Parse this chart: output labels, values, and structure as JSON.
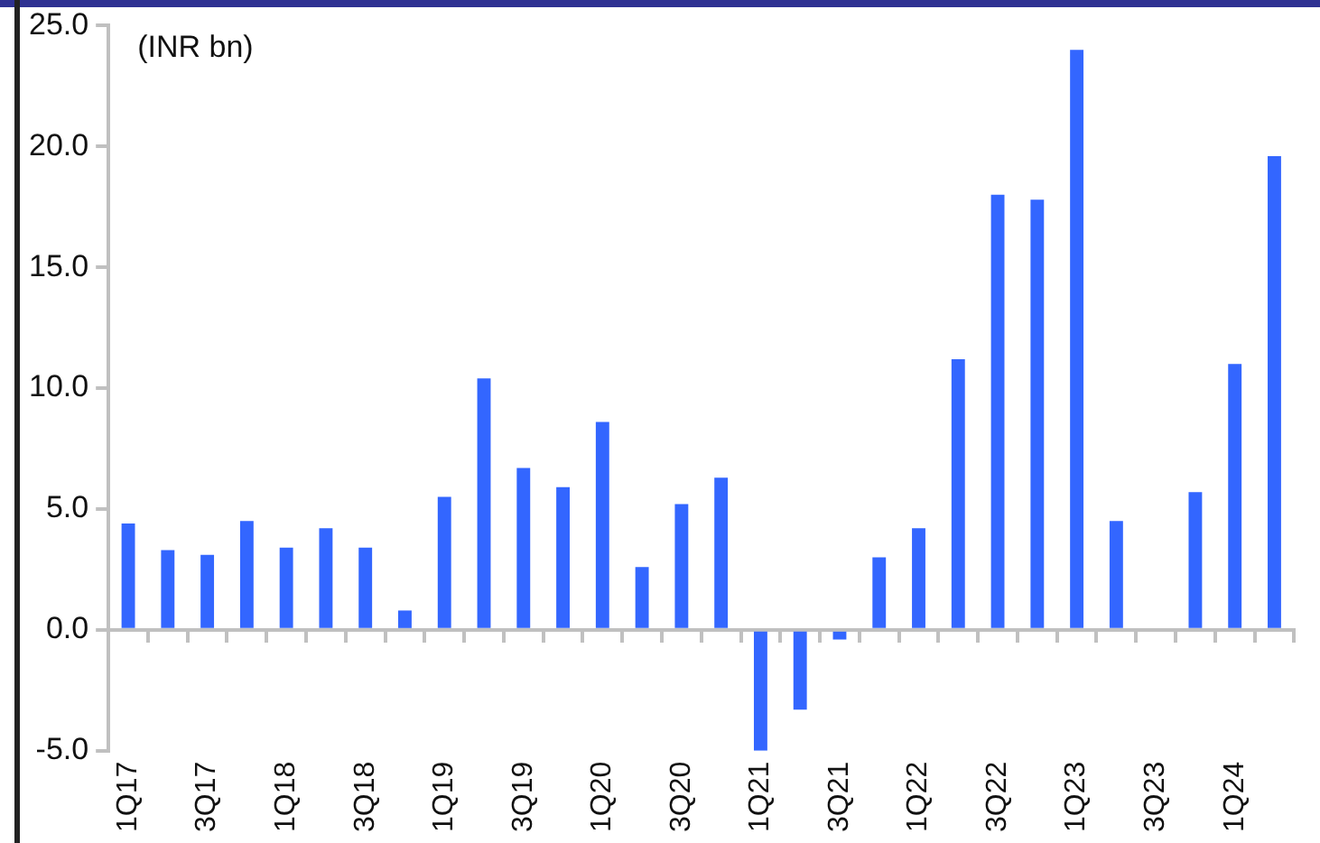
{
  "chart_data": {
    "type": "bar",
    "annotations": [
      "(INR bn)"
    ],
    "categories": [
      "1Q17",
      null,
      "3Q17",
      null,
      "1Q18",
      null,
      "3Q18",
      null,
      "1Q19",
      null,
      "3Q19",
      null,
      "1Q20",
      null,
      "3Q20",
      null,
      "1Q21",
      null,
      "3Q21",
      null,
      "1Q22",
      null,
      "3Q22",
      null,
      "1Q23",
      null,
      "3Q23",
      null,
      "1Q24",
      null
    ],
    "values": [
      4.4,
      3.3,
      3.1,
      4.5,
      3.4,
      4.2,
      3.4,
      0.8,
      5.5,
      10.4,
      6.7,
      5.9,
      8.6,
      2.6,
      5.2,
      6.3,
      -5.0,
      -3.3,
      -0.4,
      3.0,
      4.2,
      11.2,
      18.0,
      17.8,
      24.0,
      4.5,
      0,
      5.7,
      11.0,
      19.6
    ],
    "color": "#3366ff",
    "ylim": [
      -5,
      25
    ],
    "yticks": [
      {
        "value": -5,
        "label": "-5.0"
      },
      {
        "value": 0,
        "label": "0.0"
      },
      {
        "value": 5,
        "label": "5.0"
      },
      {
        "value": 10,
        "label": "10.0"
      },
      {
        "value": 15,
        "label": "15.0"
      },
      {
        "value": 20,
        "label": "20.0"
      },
      {
        "value": 25,
        "label": "25.0"
      }
    ],
    "legend": false
  }
}
